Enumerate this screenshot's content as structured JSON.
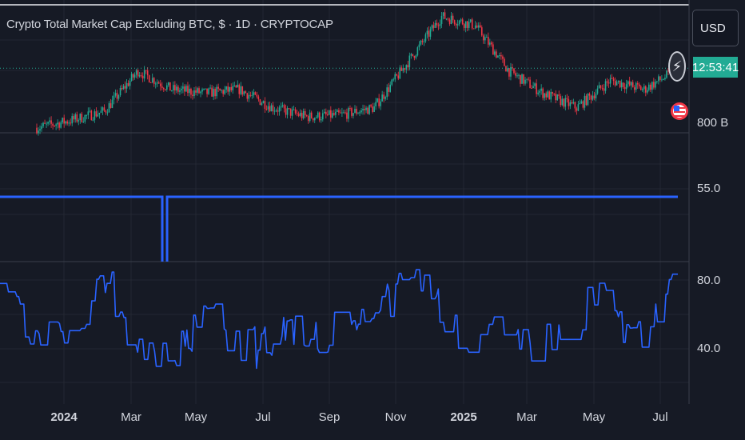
{
  "header": {
    "title": "Crypto Total Market Cap Excluding BTC, $ · 1D · CRYPTOCAP",
    "currency_button": "USD",
    "price_countdown": "12:53:41"
  },
  "colors": {
    "background": "#161a25",
    "up": "#22ab94",
    "down": "#f23645",
    "indicator": "#2962ff",
    "grid": "#232732"
  },
  "icons": [
    "lightning-icon",
    "us-flag-icon"
  ],
  "chart_data": [
    {
      "type": "candlestick",
      "title": "Crypto Total Market Cap Excluding BTC, $ · 1D · CRYPTOCAP",
      "y_tick_labels": [
        "800 B"
      ],
      "x_tick_labels": [
        "2024",
        "Mar",
        "May",
        "Jul",
        "Sep",
        "Nov",
        "2025",
        "Mar",
        "May",
        "Jul"
      ],
      "x": [
        "2023-12",
        "2024-01",
        "2024-02",
        "2024-03",
        "2024-04",
        "2024-05",
        "2024-06",
        "2024-07",
        "2024-08",
        "2024-09",
        "2024-10",
        "2024-11",
        "2024-12",
        "2025-01",
        "2025-02",
        "2025-03",
        "2025-04",
        "2025-05",
        "2025-06",
        "2025-07"
      ],
      "values": [
        790,
        830,
        880,
        1100,
        1000,
        980,
        1000,
        900,
        850,
        860,
        900,
        1150,
        1400,
        1350,
        1100,
        980,
        900,
        1050,
        1000,
        1110
      ],
      "grid": true
    },
    {
      "type": "line",
      "series": [
        {
          "values": [
            53,
            53,
            53,
            53,
            53,
            53,
            53,
            53,
            53,
            53,
            53,
            53,
            53,
            53,
            53,
            53,
            53,
            53,
            53,
            53
          ]
        }
      ],
      "drop_at": "2024-03",
      "y_tick_labels": [
        "55.0"
      ]
    },
    {
      "type": "line",
      "x": [
        "2023-12",
        "2024-01",
        "2024-02",
        "2024-03",
        "2024-04",
        "2024-05",
        "2024-06",
        "2024-07",
        "2024-08",
        "2024-09",
        "2024-10",
        "2024-11",
        "2024-12",
        "2025-01",
        "2025-02",
        "2025-03",
        "2025-04",
        "2025-05",
        "2025-06",
        "2025-07"
      ],
      "series": [
        {
          "values": [
            78,
            48,
            40,
            82,
            35,
            38,
            60,
            38,
            55,
            45,
            62,
            72,
            80,
            42,
            55,
            40,
            58,
            70,
            40,
            82
          ]
        }
      ],
      "y_tick_labels": [
        "80.0",
        "40.0"
      ],
      "ylim": [
        20,
        90
      ]
    }
  ]
}
